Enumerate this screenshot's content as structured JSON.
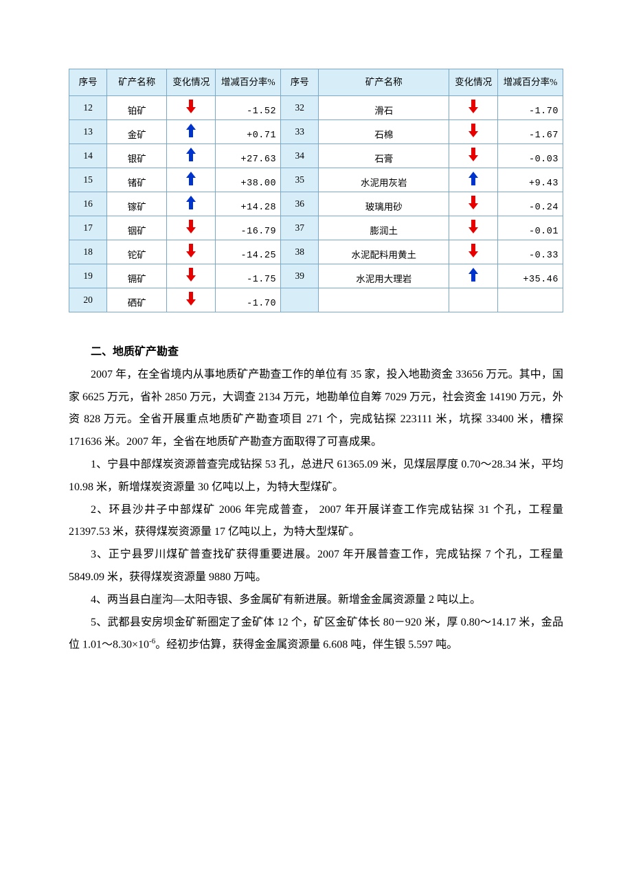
{
  "table": {
    "col_widths_pct": [
      7,
      11,
      9,
      12,
      7,
      24,
      9,
      12
    ],
    "header_bg": "#d7eef8",
    "border_color": "#7ba8c9",
    "headers": {
      "seq": "序号",
      "name": "矿产名称",
      "change": "变化情况",
      "pct": "增减百分率%"
    },
    "arrow": {
      "up_color": "#0033cc",
      "down_color": "#e60000",
      "width": 14,
      "height": 20
    },
    "rows": [
      {
        "l_no": "12",
        "l_name": "铂矿",
        "l_dir": "down",
        "l_val": "-1.52",
        "r_no": "32",
        "r_name": "滑石",
        "r_dir": "down",
        "r_val": "-1.70"
      },
      {
        "l_no": "13",
        "l_name": "金矿",
        "l_dir": "up",
        "l_val": "+0.71",
        "r_no": "33",
        "r_name": "石棉",
        "r_dir": "down",
        "r_val": "-1.67"
      },
      {
        "l_no": "14",
        "l_name": "银矿",
        "l_dir": "up",
        "l_val": "+27.63",
        "r_no": "34",
        "r_name": "石膏",
        "r_dir": "down",
        "r_val": "-0.03"
      },
      {
        "l_no": "15",
        "l_name": "锗矿",
        "l_dir": "up",
        "l_val": "+38.00",
        "r_no": "35",
        "r_name": "水泥用灰岩",
        "r_dir": "up",
        "r_val": "+9.43"
      },
      {
        "l_no": "16",
        "l_name": "镓矿",
        "l_dir": "up",
        "l_val": "+14.28",
        "r_no": "36",
        "r_name": "玻璃用砂",
        "r_dir": "down",
        "r_val": "-0.24"
      },
      {
        "l_no": "17",
        "l_name": "铟矿",
        "l_dir": "down",
        "l_val": "-16.79",
        "r_no": "37",
        "r_name": "膨润土",
        "r_dir": "down",
        "r_val": "-0.01"
      },
      {
        "l_no": "18",
        "l_name": "铊矿",
        "l_dir": "down",
        "l_val": "-14.25",
        "r_no": "38",
        "r_name": "水泥配料用黄土",
        "r_dir": "down",
        "r_val": "-0.33"
      },
      {
        "l_no": "19",
        "l_name": "镉矿",
        "l_dir": "down",
        "l_val": "-1.75",
        "r_no": "39",
        "r_name": "水泥用大理岩",
        "r_dir": "up",
        "r_val": "+35.46"
      },
      {
        "l_no": "20",
        "l_name": "硒矿",
        "l_dir": "down",
        "l_val": "-1.70",
        "r_no": "",
        "r_name": "",
        "r_dir": "",
        "r_val": ""
      }
    ]
  },
  "body": {
    "heading": "二、地质矿产勘查",
    "p1": "2007 年，在全省境内从事地质矿产勘查工作的单位有 35 家，投入地勘资金 33656 万元。其中，国家 6625 万元，省补 2850 万元，大调查 2134 万元，地勘单位自筹 7029 万元，社会资金 14190 万元，外资 828 万元。全省开展重点地质矿产勘查项目 271 个，完成钻探 223111 米，坑探 33400 米，槽探 171636 米。2007 年，全省在地质矿产勘查方面取得了可喜成果。",
    "p2": "1、宁县中部煤炭资源普查完成钻探 53 孔，总进尺 61365.09 米，见煤层厚度 0.70～28.34 米，平均 10.98 米，新增煤炭资源量 30 亿吨以上，为特大型煤矿。",
    "p3": "2、环县沙井子中部煤矿 2006 年完成普查， 2007 年开展详查工作完成钻探 31 个孔，工程量 21397.53 米，获得煤炭资源量 17 亿吨以上，为特大型煤矿。",
    "p4": "3、正宁县罗川煤矿普查找矿获得重要进展。2007 年开展普查工作，完成钻探 7 个孔，工程量 5849.09 米，获得煤炭资源量 9880 万吨。",
    "p5": "4、两当县白崖沟—太阳寺银、多金属矿有新进展。新增金金属资源量 2 吨以上。",
    "p6_a": "5、武都县安房坝金矿新圈定了金矿体 12 个，矿区金矿体长 80－920 米，厚 0.80～14.17 米，金品位 1.01～8.30×10",
    "p6_sup": "-6",
    "p6_b": "。经初步估算，获得金金属资源量 6.608 吨，伴生银 5.597 吨。"
  }
}
